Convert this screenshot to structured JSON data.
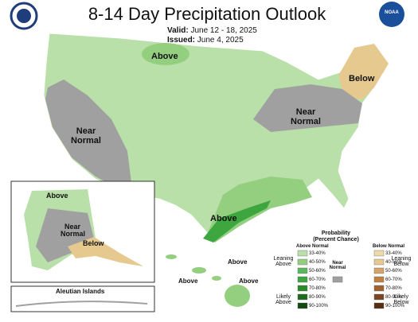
{
  "header": {
    "title": "8-14 Day Precipitation Outlook",
    "valid_label": "Valid:",
    "valid_dates": "June 12 - 18, 2025",
    "issued_label": "Issued:",
    "issued_date": "June 4, 2025",
    "noaa": "NOAA"
  },
  "conus_labels": [
    "Above",
    "Below",
    "Near Normal",
    "Near Normal",
    "Above"
  ],
  "alaska_labels": [
    "Above",
    "Near Normal",
    "Below"
  ],
  "aleutian_label": "Aleutian Islands",
  "hawaii_labels": [
    "Above",
    "Above",
    "Above"
  ],
  "legend": {
    "title": "Probability",
    "subtitle": "(Percent Chance)",
    "above_header": "Above Normal",
    "below_header": "Below Normal",
    "above_levels": [
      "33-40%",
      "40-50%",
      "50-60%",
      "60-70%",
      "70-80%",
      "80-90%",
      "90-100%"
    ],
    "below_levels": [
      "33-40%",
      "40-50%",
      "50-60%",
      "60-70%",
      "70-80%",
      "80-90%",
      "90-100%"
    ],
    "leaning_above": "Leaning Above",
    "likely_above": "Likely Above",
    "near_normal": "Near Normal",
    "leaning_below": "Leaning Below",
    "likely_below": "Likely Below"
  }
}
